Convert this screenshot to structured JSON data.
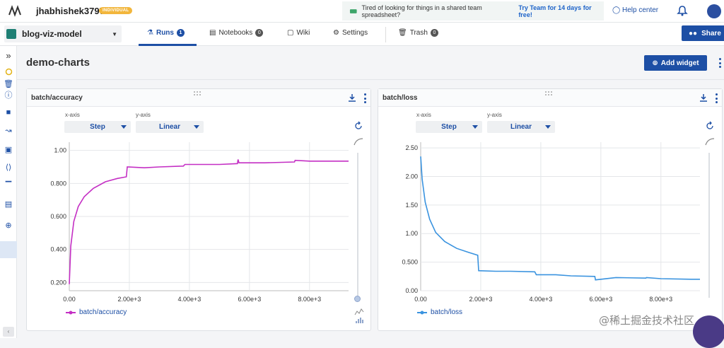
{
  "topbar": {
    "username": "jhabhishek3797",
    "badge": "INDIVIDUAL",
    "promo_text": "Tired of looking for things in a shared team spreadsheet?",
    "promo_link": "Try Team for 14 days for free!",
    "help": "Help center"
  },
  "navbar": {
    "project": "blog-viz-model",
    "tabs": [
      {
        "label": "Runs",
        "count": "1"
      },
      {
        "label": "Notebooks",
        "count": "0"
      },
      {
        "label": "Wiki"
      },
      {
        "label": "Settings"
      },
      {
        "label": "Trash",
        "count": "0"
      }
    ],
    "share": "Share"
  },
  "page": {
    "title": "demo-charts",
    "add_widget": "Add widget"
  },
  "panels": [
    {
      "title": "batch/accuracy",
      "xaxis_label": "x-axis",
      "yaxis_label": "y-axis",
      "xaxis_value": "Step",
      "yaxis_value": "Linear",
      "legend": "batch/accuracy",
      "color": "#c42fc4"
    },
    {
      "title": "batch/loss",
      "xaxis_label": "x-axis",
      "yaxis_label": "y-axis",
      "xaxis_value": "Step",
      "yaxis_value": "Linear",
      "legend": "batch/loss",
      "color": "#3a93df"
    }
  ],
  "chart_data": [
    {
      "type": "line",
      "title": "batch/accuracy",
      "xlabel": "Step",
      "ylabel": "",
      "xlim": [
        0,
        9300
      ],
      "ylim": [
        0.15,
        1.05
      ],
      "xticks": [
        "0.00",
        "2.00e+3",
        "4.00e+3",
        "6.00e+3",
        "8.00e+3"
      ],
      "xtick_values": [
        0,
        2000,
        4000,
        6000,
        8000
      ],
      "yticks": [
        "0.200",
        "0.400",
        "0.600",
        "0.800",
        "1.00"
      ],
      "ytick_values": [
        0.2,
        0.4,
        0.6,
        0.8,
        1.0
      ],
      "series": [
        {
          "name": "batch/accuracy",
          "x": [
            0,
            50,
            150,
            300,
            500,
            800,
            1200,
            1600,
            1900,
            1930,
            2500,
            3000,
            3800,
            3850,
            4500,
            5000,
            5600,
            5620,
            5650,
            6500,
            7500,
            7520,
            8000,
            9000,
            9300
          ],
          "y": [
            0.19,
            0.42,
            0.57,
            0.66,
            0.72,
            0.77,
            0.81,
            0.83,
            0.84,
            0.9,
            0.895,
            0.9,
            0.905,
            0.915,
            0.915,
            0.915,
            0.92,
            0.945,
            0.925,
            0.925,
            0.93,
            0.94,
            0.935,
            0.935,
            0.935
          ]
        }
      ]
    },
    {
      "type": "line",
      "title": "batch/loss",
      "xlabel": "Step",
      "ylabel": "",
      "xlim": [
        0,
        9300
      ],
      "ylim": [
        0,
        2.6
      ],
      "xticks": [
        "0.00",
        "2.00e+3",
        "4.00e+3",
        "6.00e+3",
        "8.00e+3"
      ],
      "xtick_values": [
        0,
        2000,
        4000,
        6000,
        8000
      ],
      "yticks": [
        "0.00",
        "0.500",
        "1.00",
        "1.50",
        "2.00",
        "2.50"
      ],
      "ytick_values": [
        0,
        0.5,
        1.0,
        1.5,
        2.0,
        2.5
      ],
      "series": [
        {
          "name": "batch/loss",
          "x": [
            0,
            50,
            150,
            300,
            500,
            800,
            1200,
            1600,
            1900,
            1930,
            2500,
            3000,
            3800,
            3850,
            4500,
            5000,
            5800,
            5820,
            6500,
            7500,
            7520,
            8000,
            9000,
            9300
          ],
          "y": [
            2.35,
            1.95,
            1.55,
            1.25,
            1.02,
            0.86,
            0.74,
            0.67,
            0.62,
            0.35,
            0.34,
            0.34,
            0.33,
            0.28,
            0.28,
            0.26,
            0.25,
            0.19,
            0.23,
            0.22,
            0.23,
            0.21,
            0.2,
            0.2
          ]
        }
      ]
    }
  ],
  "watermark": "@稀土掘金技术社区"
}
